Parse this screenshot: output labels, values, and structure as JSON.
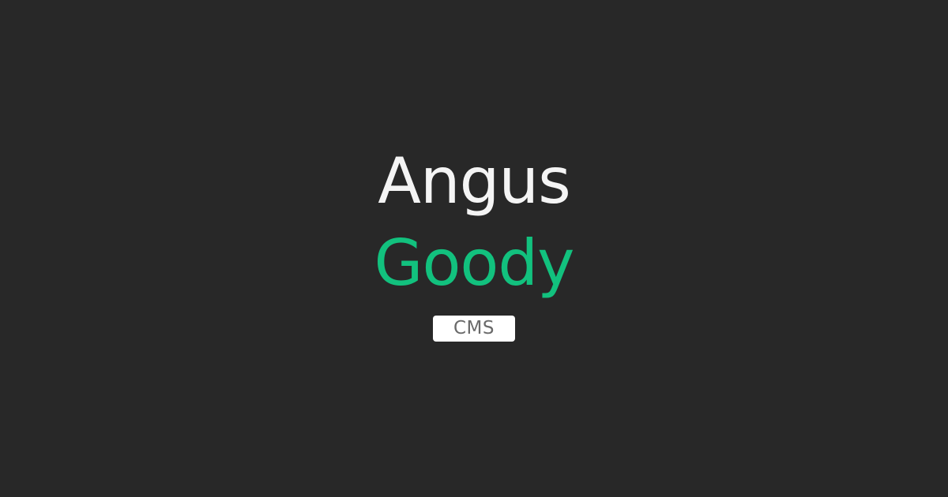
{
  "card": {
    "first_name": "Angus",
    "last_name": "Goody",
    "badge_label": "CMS"
  },
  "colors": {
    "background": "#282828",
    "first_name": "#f4f4f4",
    "accent": "#12c17e",
    "badge_bg": "#ffffff",
    "badge_text": "#6a6a6a"
  }
}
